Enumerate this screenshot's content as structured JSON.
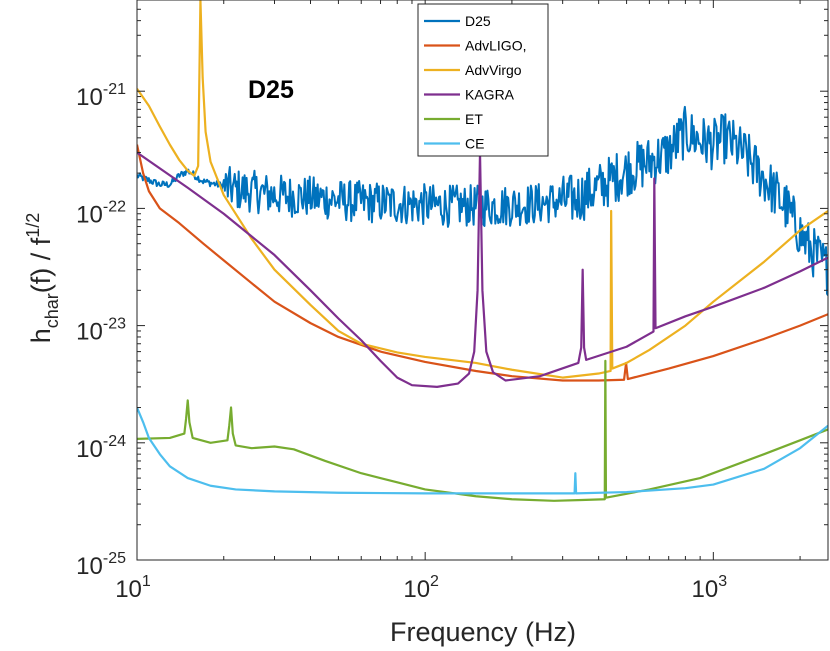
{
  "chart_data": {
    "type": "line",
    "xscale": "log",
    "yscale": "log",
    "xlim": [
      10,
      2500
    ],
    "ylim": [
      1e-25,
      6e-21
    ],
    "xlabel": "Frequency (Hz)",
    "ylabel": {
      "main": "h",
      "sub": "char",
      "rest": "(f) / f",
      "sup": "1/2"
    },
    "annotation": "D25",
    "legend_location": "top-center",
    "x_ticks": [
      {
        "value": 10,
        "base": "10",
        "exp": "1"
      },
      {
        "value": 100,
        "base": "10",
        "exp": "2"
      },
      {
        "value": 1000,
        "base": "10",
        "exp": "3"
      }
    ],
    "y_ticks": [
      {
        "value": 1e-21,
        "base": "10",
        "exp": "-21"
      },
      {
        "value": 1e-22,
        "base": "10",
        "exp": "-22"
      },
      {
        "value": 1e-23,
        "base": "10",
        "exp": "-23"
      },
      {
        "value": 1e-24,
        "base": "10",
        "exp": "-24"
      },
      {
        "value": 1e-25,
        "base": "10",
        "exp": "-25"
      }
    ],
    "series": [
      {
        "name": "D25",
        "color": "#0072BD",
        "noisy": true,
        "points": [
          [
            10,
            1.9e-22
          ],
          [
            12,
            1.6e-22
          ],
          [
            13,
            1.6e-22
          ],
          [
            14,
            1.9e-22
          ],
          [
            15,
            2.1e-22
          ],
          [
            17,
            1.7e-22
          ],
          [
            19,
            1.6e-22
          ],
          [
            22,
            1.45e-22
          ],
          [
            25,
            1.4e-22
          ],
          [
            30,
            1.3e-22
          ],
          [
            40,
            1.25e-22
          ],
          [
            55,
            1.15e-22
          ],
          [
            80,
            1.1e-22
          ],
          [
            120,
            1.05e-22
          ],
          [
            180,
            1.05e-22
          ],
          [
            250,
            1.1e-22
          ],
          [
            330,
            1.2e-22
          ],
          [
            400,
            1.5e-22
          ],
          [
            500,
            2.1e-22
          ],
          [
            600,
            2.5e-22
          ],
          [
            700,
            3e-22
          ],
          [
            800,
            4.5e-22
          ],
          [
            900,
            3.8e-22
          ],
          [
            1000,
            3.5e-22
          ],
          [
            1100,
            4e-22
          ],
          [
            1300,
            2.8e-22
          ],
          [
            1500,
            1.8e-22
          ],
          [
            1800,
            1e-22
          ],
          [
            2100,
            5e-23
          ],
          [
            2500,
            3e-23
          ]
        ]
      },
      {
        "name": "AdvLIGO,",
        "color": "#D95319",
        "points": [
          [
            10,
            3.5e-22
          ],
          [
            10.5,
            2e-22
          ],
          [
            11,
            1.4e-22
          ],
          [
            12,
            1e-22
          ],
          [
            14,
            7.5e-23
          ],
          [
            17,
            5e-23
          ],
          [
            20,
            3.6e-23
          ],
          [
            25,
            2.3e-23
          ],
          [
            30,
            1.6e-23
          ],
          [
            40,
            1.05e-23
          ],
          [
            50,
            8e-24
          ],
          [
            70,
            6e-24
          ],
          [
            100,
            4.9e-24
          ],
          [
            150,
            4.1e-24
          ],
          [
            200,
            3.7e-24
          ],
          [
            300,
            3.4e-24
          ],
          [
            400,
            3.4e-24
          ],
          [
            490,
            3.45e-24
          ],
          [
            498,
            4.8e-24
          ],
          [
            505,
            3.5e-24
          ],
          [
            700,
            4.3e-24
          ],
          [
            1000,
            5.5e-24
          ],
          [
            1500,
            7.7e-24
          ],
          [
            2000,
            1e-23
          ],
          [
            2500,
            1.25e-23
          ]
        ]
      },
      {
        "name": "AdvVirgo",
        "color": "#EDB120",
        "points": [
          [
            10,
            1.05e-21
          ],
          [
            11,
            7.5e-22
          ],
          [
            12,
            5e-22
          ],
          [
            13,
            3.5e-22
          ],
          [
            14,
            2.6e-22
          ],
          [
            15,
            2.1e-22
          ],
          [
            15.8,
            1.9e-22
          ],
          [
            16.3,
            2.3e-22
          ],
          [
            16.6,
            6e-21
          ],
          [
            16.9,
            1.3e-21
          ],
          [
            17.3,
            4.5e-22
          ],
          [
            18,
            2.5e-22
          ],
          [
            20,
            1.3e-22
          ],
          [
            25,
            5.5e-23
          ],
          [
            30,
            3e-23
          ],
          [
            40,
            1.5e-23
          ],
          [
            50,
            9e-24
          ],
          [
            60,
            7e-24
          ],
          [
            80,
            5.9e-24
          ],
          [
            100,
            5.4e-24
          ],
          [
            150,
            4.8e-24
          ],
          [
            200,
            4.2e-24
          ],
          [
            300,
            3.6e-24
          ],
          [
            400,
            3.9e-24
          ],
          [
            440,
            4.1e-24
          ],
          [
            442,
            9.5e-23
          ],
          [
            446,
            4.3e-24
          ],
          [
            500,
            4.8e-24
          ],
          [
            600,
            6.2e-24
          ],
          [
            800,
            1e-23
          ],
          [
            1000,
            1.6e-23
          ],
          [
            1500,
            3.5e-23
          ],
          [
            2000,
            6.5e-23
          ],
          [
            2500,
            9.5e-23
          ]
        ]
      },
      {
        "name": "KAGRA",
        "color": "#7E2F8E",
        "points": [
          [
            10,
            3e-22
          ],
          [
            15,
            1.5e-22
          ],
          [
            20,
            9e-23
          ],
          [
            30,
            4e-23
          ],
          [
            40,
            2e-23
          ],
          [
            50,
            1.15e-23
          ],
          [
            60,
            7.5e-24
          ],
          [
            70,
            5e-24
          ],
          [
            80,
            3.6e-24
          ],
          [
            90,
            3.1e-24
          ],
          [
            110,
            3e-24
          ],
          [
            130,
            3.2e-24
          ],
          [
            142,
            3.9e-24
          ],
          [
            148,
            6e-24
          ],
          [
            152,
            2e-23
          ],
          [
            155,
            3e-22
          ],
          [
            158,
            2e-23
          ],
          [
            163,
            6e-24
          ],
          [
            172,
            4e-24
          ],
          [
            190,
            3.4e-24
          ],
          [
            250,
            3.7e-24
          ],
          [
            340,
            4.8e-24
          ],
          [
            348,
            6.5e-24
          ],
          [
            352,
            3e-23
          ],
          [
            356,
            6.5e-24
          ],
          [
            362,
            5.1e-24
          ],
          [
            500,
            6.6e-24
          ],
          [
            620,
            8.9e-24
          ],
          [
            624,
            1.8e-22
          ],
          [
            630,
            9.5e-24
          ],
          [
            800,
            1.2e-23
          ],
          [
            1000,
            1.45e-23
          ],
          [
            1500,
            2.1e-23
          ],
          [
            2000,
            2.9e-23
          ],
          [
            2500,
            3.8e-23
          ]
        ]
      },
      {
        "name": "ET",
        "color": "#77AC30",
        "points": [
          [
            10,
            1.08e-24
          ],
          [
            13,
            1.1e-24
          ],
          [
            14.6,
            1.2e-24
          ],
          [
            14.8,
            1.6e-24
          ],
          [
            15,
            2.3e-24
          ],
          [
            15.2,
            1.5e-24
          ],
          [
            15.6,
            1.1e-24
          ],
          [
            18,
            1e-24
          ],
          [
            20.6,
            1.05e-24
          ],
          [
            20.9,
            1.4e-24
          ],
          [
            21.2,
            2e-24
          ],
          [
            21.5,
            1.2e-24
          ],
          [
            22,
            9.5e-25
          ],
          [
            25,
            9e-25
          ],
          [
            30,
            9.3e-25
          ],
          [
            35,
            8.8e-25
          ],
          [
            45,
            7e-25
          ],
          [
            60,
            5.5e-25
          ],
          [
            80,
            4.6e-25
          ],
          [
            100,
            4e-25
          ],
          [
            150,
            3.5e-25
          ],
          [
            200,
            3.3e-25
          ],
          [
            280,
            3.2e-25
          ],
          [
            350,
            3.25e-25
          ],
          [
            420,
            3.3e-25
          ],
          [
            422,
            5e-24
          ],
          [
            424,
            3.4e-25
          ],
          [
            600,
            4e-25
          ],
          [
            900,
            5e-25
          ],
          [
            1500,
            8e-25
          ],
          [
            2000,
            1.05e-24
          ],
          [
            2500,
            1.3e-24
          ]
        ]
      },
      {
        "name": "CE",
        "color": "#4DBEEE",
        "points": [
          [
            10,
            2e-24
          ],
          [
            10.5,
            1.5e-24
          ],
          [
            11,
            1.1e-24
          ],
          [
            12,
            8e-25
          ],
          [
            13,
            6.3e-25
          ],
          [
            15,
            5e-25
          ],
          [
            18,
            4.3e-25
          ],
          [
            22,
            4e-25
          ],
          [
            30,
            3.85e-25
          ],
          [
            50,
            3.75e-25
          ],
          [
            100,
            3.7e-25
          ],
          [
            200,
            3.7e-25
          ],
          [
            330,
            3.7e-25
          ],
          [
            332,
            5.5e-25
          ],
          [
            334,
            3.7e-25
          ],
          [
            500,
            3.8e-25
          ],
          [
            800,
            4.1e-25
          ],
          [
            1000,
            4.4e-25
          ],
          [
            1500,
            6e-25
          ],
          [
            2000,
            9e-25
          ],
          [
            2500,
            1.4e-24
          ]
        ]
      }
    ]
  }
}
